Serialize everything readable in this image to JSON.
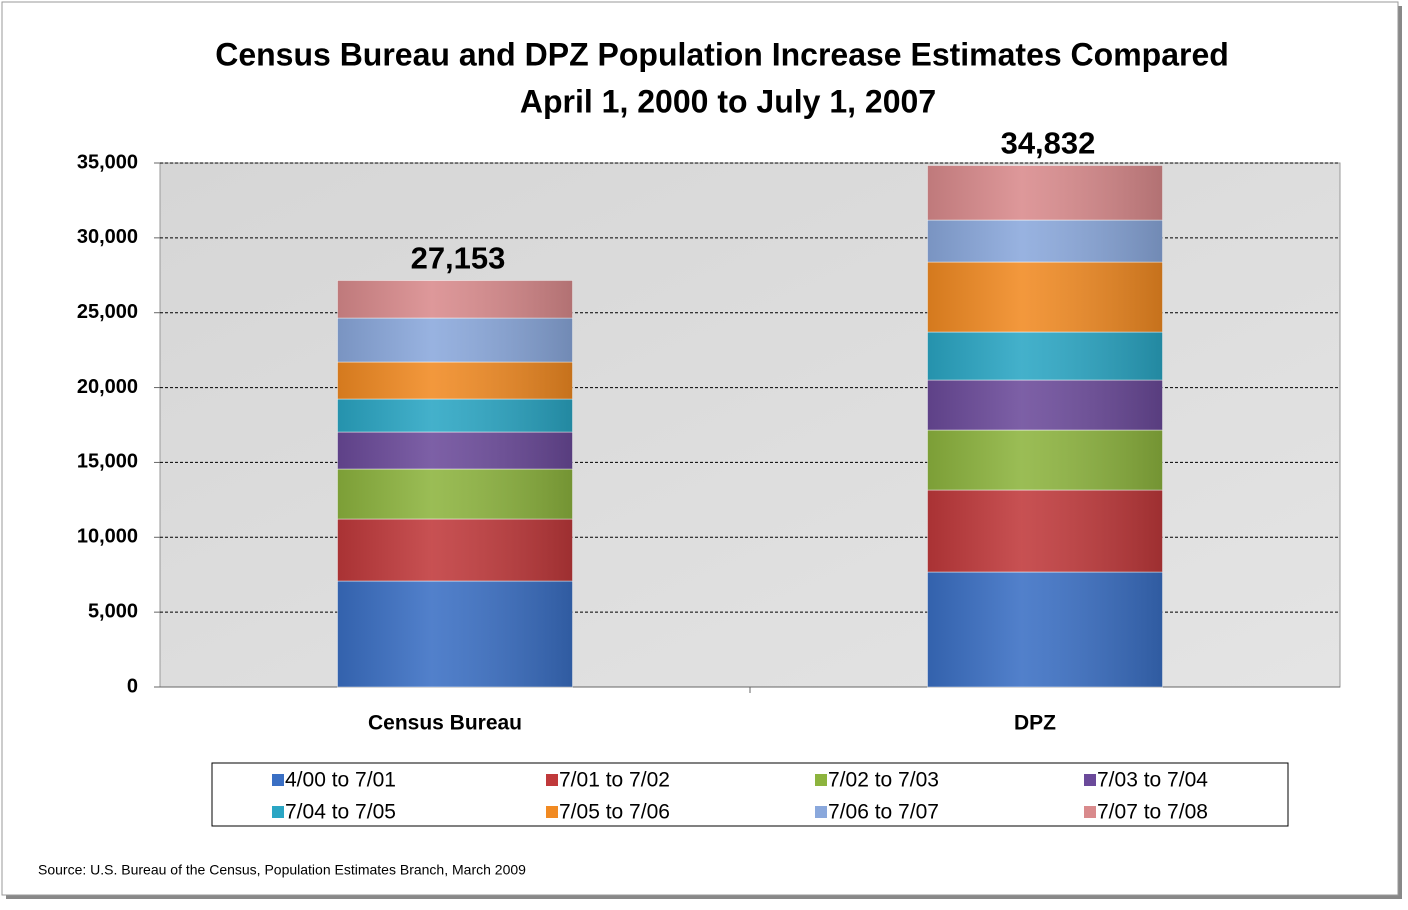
{
  "chart_data": {
    "type": "stacked_bar",
    "title": "Census Bureau and DPZ Population Increase Estimates Compared",
    "subtitle": "April 1, 2000 to July 1, 2007",
    "categories": [
      "Census Bureau",
      "DPZ"
    ],
    "series": [
      {
        "name": "4/00 to 7/01",
        "color": "#3a6fc4",
        "values": [
          7080,
          7681
        ]
      },
      {
        "name": "7/01 to 7/02",
        "color": "#c0393b",
        "values": [
          4141,
          5477
        ]
      },
      {
        "name": "7/02 to 7/03",
        "color": "#8db43e",
        "values": [
          3340,
          4007
        ]
      },
      {
        "name": "7/03 to 7/04",
        "color": "#6b4a9a",
        "values": [
          2471,
          3340
        ]
      },
      {
        "name": "7/04 to 7/05",
        "color": "#2aa6c4",
        "values": [
          2204,
          3206
        ]
      },
      {
        "name": "7/05 to 7/06",
        "color": "#f18a22",
        "values": [
          2472,
          4675
        ]
      },
      {
        "name": "7/06 to 7/07",
        "color": "#8aa8dc",
        "values": [
          2938,
          2805
        ]
      },
      {
        "name": "7/07 to 7/08",
        "color": "#d98a8c",
        "values": [
          2507,
          3641
        ]
      }
    ],
    "totals": [
      27153,
      34832
    ],
    "total_labels": [
      "27,153",
      "34,832"
    ],
    "ylim": [
      0,
      35000
    ],
    "yticks": [
      0,
      {
        "value": 5000,
        "label": "5,000"
      },
      {
        "value": 10000,
        "label": "10,000"
      },
      {
        "value": 15000,
        "label": "15,000"
      },
      {
        "value": 20000,
        "label": "20,000"
      },
      {
        "value": 25000,
        "label": "25,000"
      },
      {
        "value": 30000,
        "label": "30,000"
      },
      {
        "value": 35000,
        "label": "35,000"
      }
    ],
    "grid": true,
    "source": "Source: U.S. Bureau of the Census, Population Estimates Branch, March 2009"
  }
}
